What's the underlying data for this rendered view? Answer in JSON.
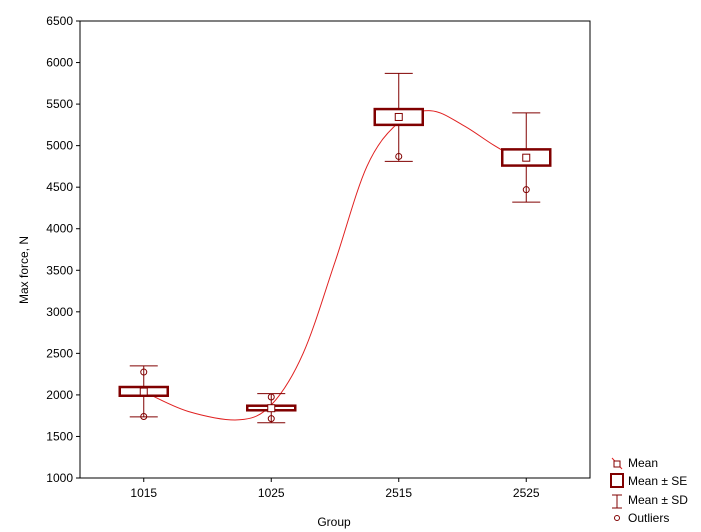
{
  "chart_data": {
    "type": "box",
    "title": "",
    "xlabel": "Group",
    "ylabel": "Max force, N",
    "categories": [
      "1015",
      "1025",
      "2515",
      "2525"
    ],
    "ylim": [
      1000,
      6500
    ],
    "yticks": [
      1000,
      1500,
      2000,
      2500,
      3000,
      3500,
      4000,
      4500,
      5000,
      5500,
      6000,
      6500
    ],
    "grid": false,
    "legend_position": "bottom-right",
    "groups": [
      {
        "category": "1015",
        "mean": 2040,
        "se_low": 1990,
        "se_high": 2095,
        "sd_low": 1735,
        "sd_high": 2350,
        "outliers": [
          2275,
          1740
        ]
      },
      {
        "category": "1025",
        "mean": 1840,
        "se_low": 1815,
        "se_high": 1870,
        "sd_low": 1665,
        "sd_high": 2015,
        "outliers": [
          1975,
          1835,
          1715
        ]
      },
      {
        "category": "2515",
        "mean": 5345,
        "se_low": 5250,
        "se_high": 5440,
        "sd_low": 4810,
        "sd_high": 5870,
        "outliers": [
          4870
        ]
      },
      {
        "category": "2525",
        "mean": 4855,
        "se_low": 4760,
        "se_high": 4955,
        "sd_low": 4320,
        "sd_high": 5395,
        "outliers": [
          4470
        ]
      }
    ],
    "fit_curve": {
      "type": "smooth",
      "points": [
        [
          0,
          2040
        ],
        [
          0.35,
          1800
        ],
        [
          0.75,
          1700
        ],
        [
          1.0,
          1880
        ],
        [
          1.25,
          2500
        ],
        [
          1.5,
          3600
        ],
        [
          1.75,
          4750
        ],
        [
          2.0,
          5280
        ],
        [
          2.25,
          5420
        ],
        [
          2.5,
          5250
        ],
        [
          2.75,
          5000
        ],
        [
          3.0,
          4780
        ]
      ]
    },
    "legend": [
      {
        "marker": "mean",
        "label": "Mean"
      },
      {
        "marker": "se-box",
        "label": "Mean ± SE"
      },
      {
        "marker": "sd-whisker",
        "label": "Mean ± SD"
      },
      {
        "marker": "outlier",
        "label": "Outliers"
      }
    ],
    "colors": {
      "box": "#800000",
      "curve": "#e02020",
      "axis": "#000000",
      "legend_mean": "#c04040"
    }
  }
}
